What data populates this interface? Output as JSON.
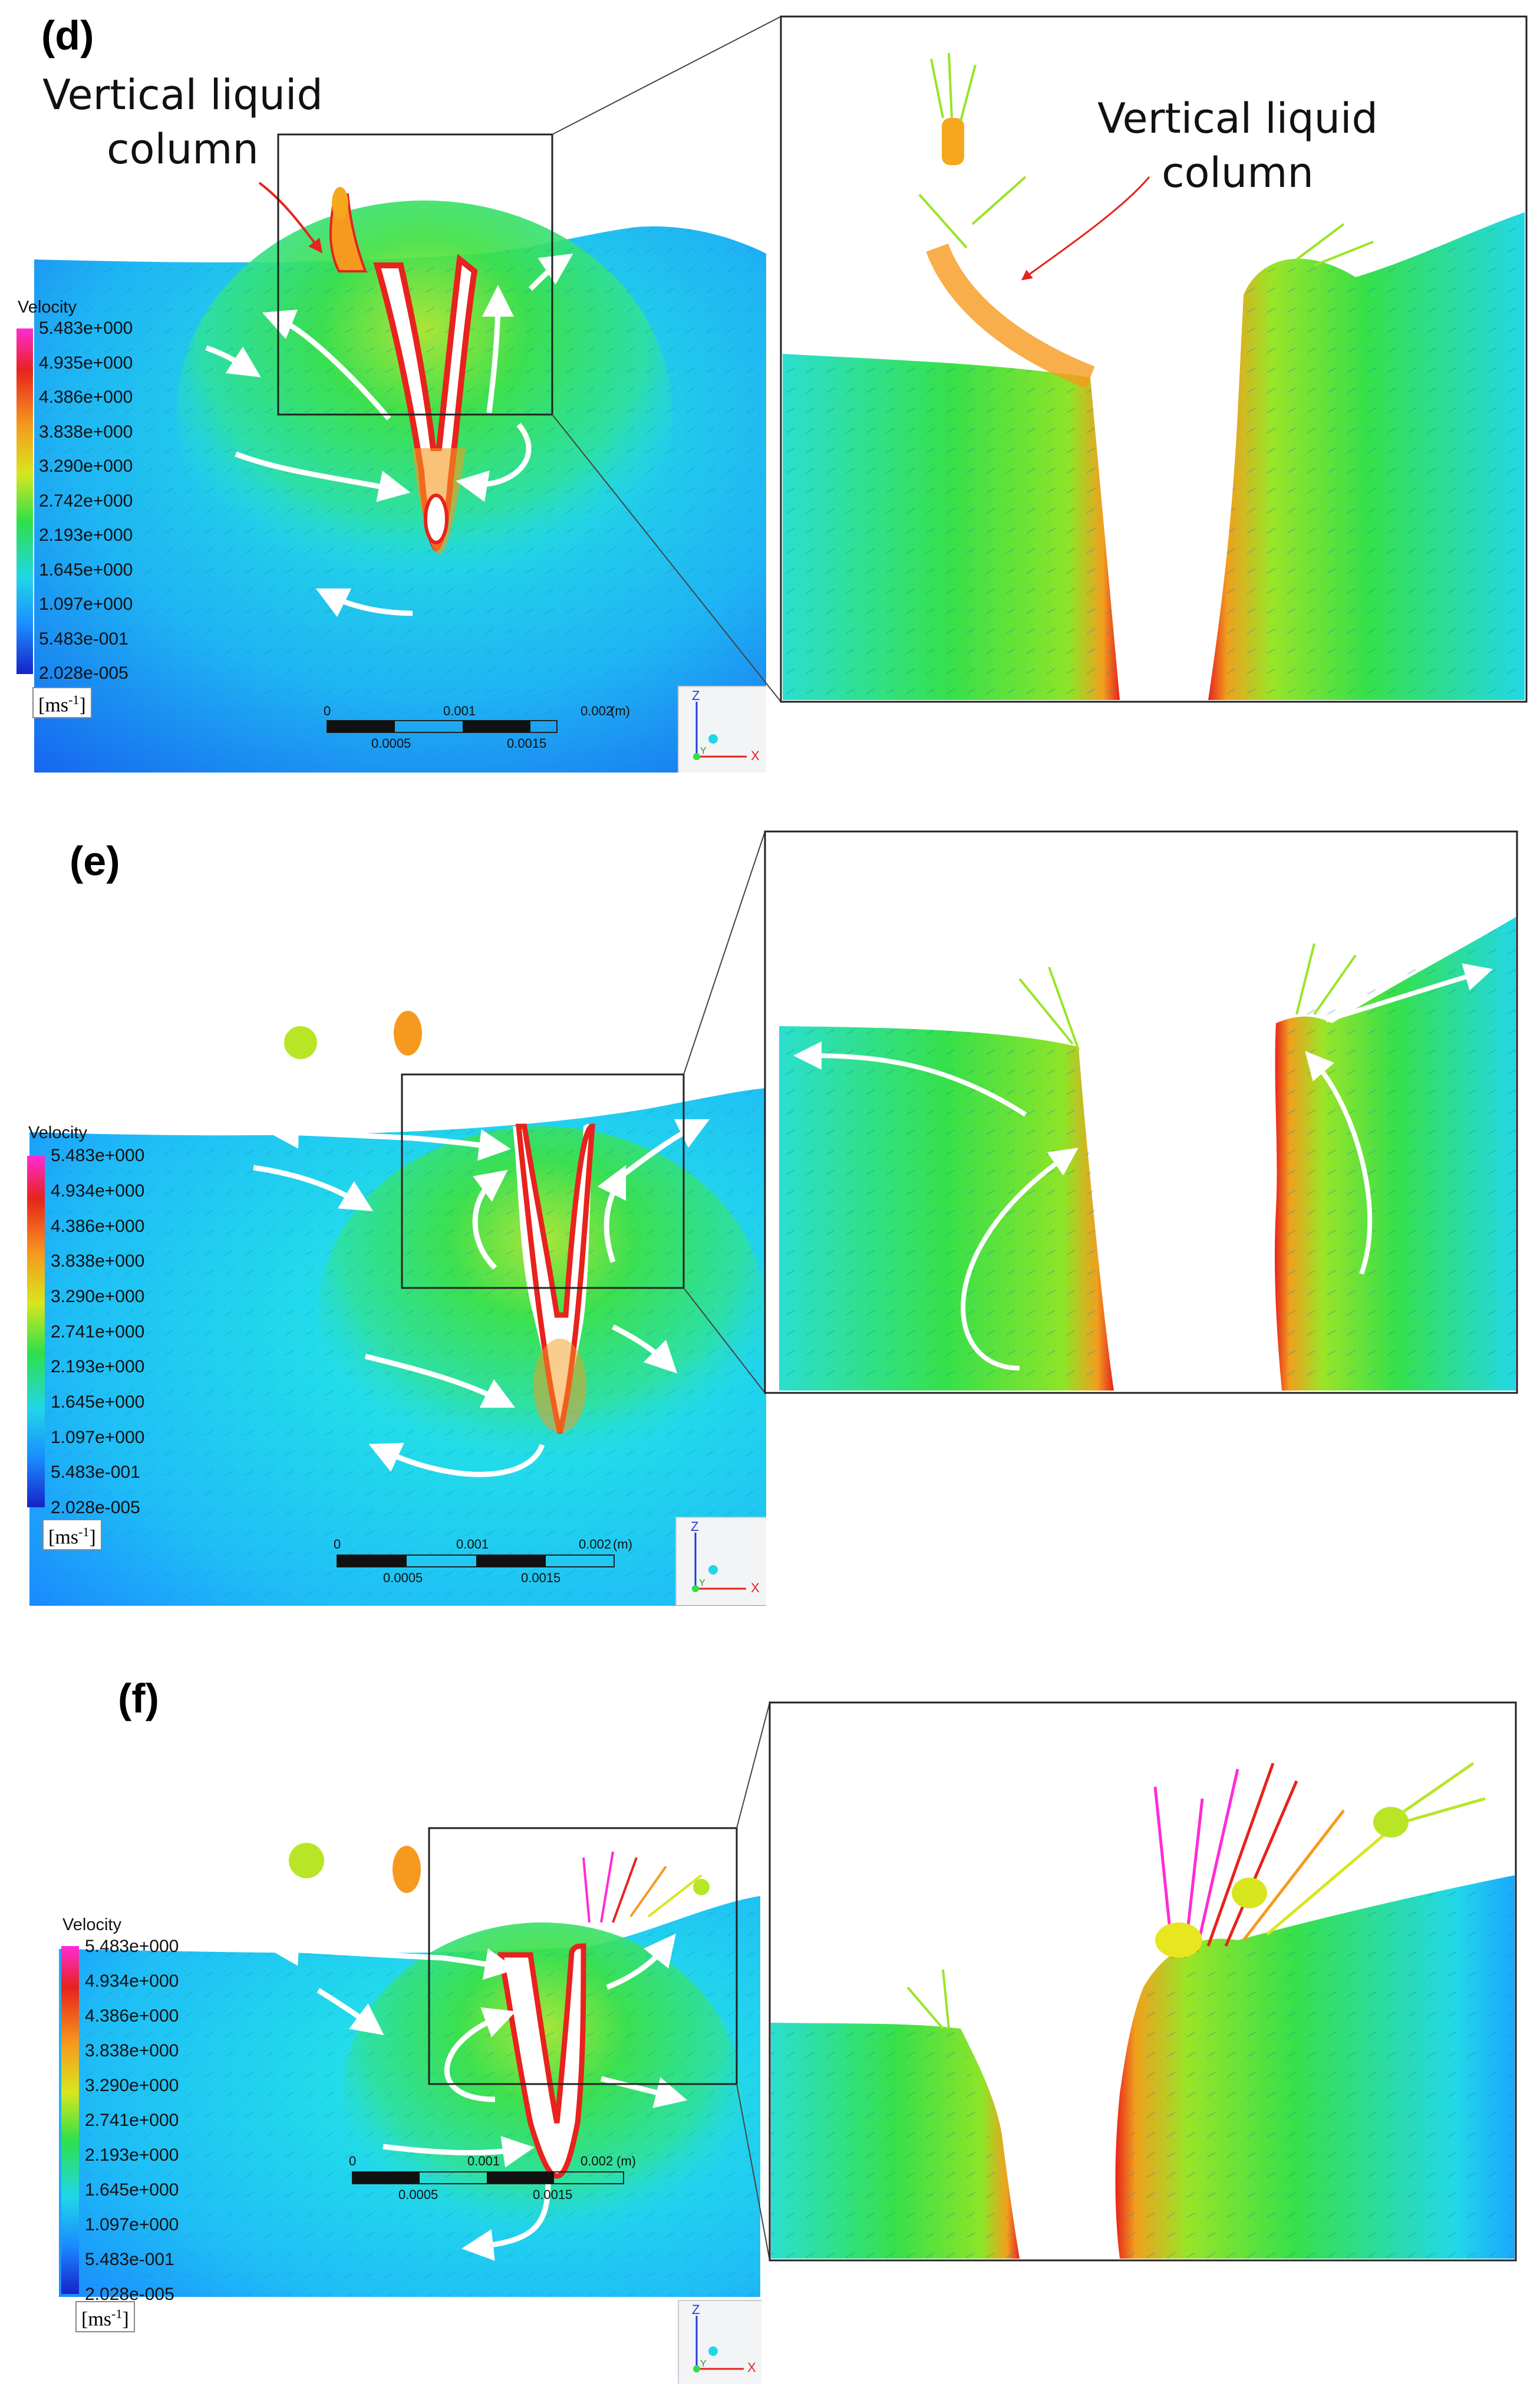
{
  "figure": {
    "panels": [
      {
        "id": "d",
        "label": "(d)",
        "annotation_main": [
          "Vertical liquid",
          "column"
        ],
        "annotation_zoom": [
          "Vertical liquid",
          "column"
        ],
        "legend_title": "Velocity",
        "legend_ticks": [
          "5.483e+000",
          "4.935e+000",
          "4.386e+000",
          "3.838e+000",
          "3.290e+000",
          "2.742e+000",
          "2.193e+000",
          "1.645e+000",
          "1.097e+000",
          "5.483e-001",
          "2.028e-005"
        ],
        "unit_base": "[ms",
        "unit_exp": "-1",
        "unit_close": "]",
        "scale_top": [
          "0",
          "0.001",
          "0.002",
          "(m)"
        ],
        "scale_bottom": [
          "0.0005",
          "0.0015"
        ],
        "axes": [
          "Z",
          "X",
          "Y"
        ]
      },
      {
        "id": "e",
        "label": "(e)",
        "legend_title": "Velocity",
        "legend_ticks": [
          "5.483e+000",
          "4.934e+000",
          "4.386e+000",
          "3.838e+000",
          "3.290e+000",
          "2.741e+000",
          "2.193e+000",
          "1.645e+000",
          "1.097e+000",
          "5.483e-001",
          "2.028e-005"
        ],
        "unit_base": "[ms",
        "unit_exp": "-1",
        "unit_close": "]",
        "scale_top": [
          "0",
          "0.001",
          "0.002",
          "(m)"
        ],
        "scale_bottom": [
          "0.0005",
          "0.0015"
        ],
        "axes": [
          "Z",
          "X",
          "Y"
        ]
      },
      {
        "id": "f",
        "label": "(f)",
        "legend_title": "Velocity",
        "legend_ticks": [
          "5.483e+000",
          "4.934e+000",
          "4.386e+000",
          "3.838e+000",
          "3.290e+000",
          "2.741e+000",
          "2.193e+000",
          "1.645e+000",
          "1.097e+000",
          "5.483e-001",
          "2.028e-005"
        ],
        "unit_base": "[ms",
        "unit_exp": "-1",
        "unit_close": "]",
        "scale_top": [
          "0",
          "0.001",
          "0.002",
          "(m)"
        ],
        "scale_bottom": [
          "0.0005",
          "0.0015"
        ],
        "axes": [
          "Z",
          "X",
          "Y"
        ]
      }
    ],
    "colors": {
      "field_blue": "#1a8cff",
      "field_cyan": "#21d6e8",
      "field_green": "#2ee04a",
      "field_yellow": "#c8e61e",
      "field_orange": "#f59a1e",
      "field_red": "#e8221c",
      "vector_magenta": "#ff2bd6",
      "flow_arrow": "#ffffff",
      "annotation_arrow": "#e8221c"
    }
  }
}
